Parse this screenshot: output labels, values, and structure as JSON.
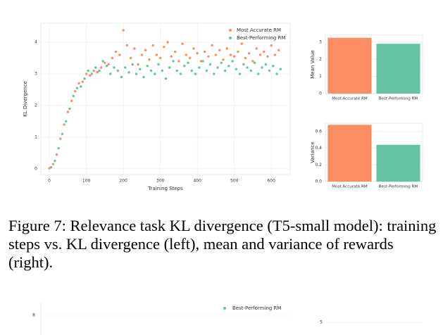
{
  "chart_data": [
    {
      "type": "scatter",
      "xlabel": "Training Steps",
      "ylabel": "KL Divergence",
      "xlim": [
        -23,
        651
      ],
      "ylim": [
        -0.18,
        4.6
      ],
      "xticks": [
        0,
        100,
        200,
        300,
        400,
        500,
        600
      ],
      "yticks": [
        0,
        1,
        2,
        3,
        4
      ],
      "grid": true,
      "legend": "upper right",
      "series": [
        {
          "name": "Most Accurate RM",
          "color": "#fc8d62",
          "x": [
            0,
            10,
            20,
            30,
            40,
            50,
            60,
            70,
            80,
            90,
            100,
            110,
            120,
            130,
            140,
            150,
            160,
            170,
            180,
            190,
            200,
            210,
            220,
            230,
            240,
            250,
            260,
            270,
            280,
            290,
            300,
            310,
            320,
            330,
            340,
            350,
            360,
            370,
            380,
            390,
            400,
            410,
            420,
            430,
            440,
            450,
            460,
            470,
            480,
            490,
            500,
            510,
            520,
            530,
            540,
            550,
            560,
            570,
            580,
            590,
            600,
            610,
            620
          ],
          "values": [
            0.02,
            0.15,
            0.45,
            0.95,
            1.4,
            1.8,
            2.15,
            2.45,
            2.7,
            2.75,
            3.0,
            2.95,
            3.1,
            3.05,
            3.2,
            3.35,
            3.3,
            3.5,
            3.7,
            3.6,
            4.38,
            3.9,
            3.5,
            3.8,
            3.3,
            3.6,
            3.75,
            3.45,
            3.9,
            3.6,
            3.5,
            3.85,
            4.0,
            3.55,
            3.7,
            3.4,
            3.95,
            3.6,
            3.5,
            3.8,
            3.65,
            3.4,
            3.7,
            3.55,
            3.9,
            3.6,
            3.75,
            3.45,
            3.8,
            3.6,
            3.55,
            3.7,
            3.95,
            3.5,
            3.65,
            3.4,
            3.8,
            3.6,
            3.7,
            3.55,
            3.9,
            3.6,
            3.75
          ]
        },
        {
          "name": "Best-Performing RM",
          "color": "#66c2a5",
          "x": [
            5,
            15,
            25,
            35,
            45,
            55,
            65,
            75,
            85,
            95,
            105,
            115,
            125,
            135,
            145,
            155,
            165,
            175,
            185,
            195,
            205,
            215,
            225,
            235,
            245,
            255,
            265,
            275,
            285,
            295,
            305,
            315,
            325,
            335,
            345,
            355,
            365,
            375,
            385,
            395,
            405,
            415,
            425,
            435,
            445,
            455,
            465,
            475,
            485,
            495,
            505,
            515,
            525,
            535,
            545,
            555,
            565,
            575,
            585,
            595,
            605,
            615,
            625
          ],
          "values": [
            0.05,
            0.25,
            0.65,
            1.1,
            1.5,
            1.9,
            2.3,
            2.55,
            2.6,
            2.85,
            3.1,
            3.0,
            3.2,
            3.1,
            3.4,
            3.25,
            3.0,
            3.2,
            3.1,
            2.9,
            3.2,
            3.05,
            3.3,
            3.0,
            3.15,
            2.9,
            3.25,
            3.1,
            3.0,
            3.3,
            3.1,
            2.85,
            3.2,
            3.4,
            3.1,
            3.0,
            3.25,
            3.35,
            3.1,
            3.0,
            3.2,
            3.4,
            3.1,
            3.3,
            3.0,
            3.2,
            3.35,
            3.1,
            3.25,
            3.4,
            3.15,
            3.0,
            3.3,
            3.2,
            3.1,
            3.35,
            3.0,
            3.2,
            3.3,
            3.1,
            3.25,
            3.0,
            3.15
          ]
        }
      ]
    },
    {
      "type": "bar",
      "ylabel": "Mean Value",
      "categories": [
        "Most Accurate RM",
        "Best-Performing RM"
      ],
      "values": [
        3.25,
        2.9
      ],
      "colors": [
        "#fc8d62",
        "#66c2a5"
      ],
      "ylim": [
        0,
        3.4
      ],
      "yticks": [
        0,
        1,
        2,
        3
      ],
      "grid": true
    },
    {
      "type": "bar",
      "ylabel": "Variance",
      "categories": [
        "Most Accurate RM",
        "Best-Performing RM"
      ],
      "values": [
        0.68,
        0.44
      ],
      "colors": [
        "#fc8d62",
        "#66c2a5"
      ],
      "ylim": [
        0,
        0.7
      ],
      "yticks": [
        {
          "value": 0,
          "label": "0.0"
        },
        0.2,
        0.4,
        0.6
      ],
      "grid": true
    }
  ],
  "caption": "Figure 7: Relevance task KL divergence (T5-small model): training steps vs. KL divergence (left), mean and variance of rewards (right).",
  "next_figure": {
    "legend": "Best-Performing RM",
    "left_tick": "8",
    "right_tick": "5"
  }
}
